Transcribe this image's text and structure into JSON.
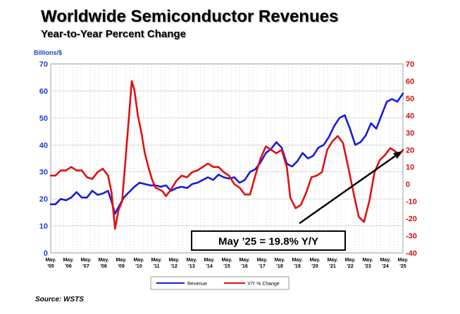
{
  "header": {
    "title": "Worldwide Semiconductor Revenues",
    "subtitle": "Year-to-Year Percent Change"
  },
  "footer": {
    "source": "Source: WSTS"
  },
  "colors": {
    "revenue": "#1a1adb",
    "yoy": "#e01010",
    "left_axis": "#1f3fbf",
    "right_axis": "#d01010"
  },
  "chart_data": {
    "type": "line",
    "left_axis": {
      "unit_label": "Billions/$",
      "ylim": [
        0,
        70
      ],
      "ticks": [
        0,
        10,
        20,
        30,
        40,
        50,
        60,
        70
      ]
    },
    "right_axis": {
      "ylim": [
        -40,
        70
      ],
      "ticks": [
        -40,
        -30,
        -20,
        -10,
        0,
        10,
        20,
        30,
        40,
        50,
        60,
        70
      ]
    },
    "x_ticks": [
      [
        "May.",
        "'05"
      ],
      [
        "May.",
        "'06"
      ],
      [
        "May.",
        "'07"
      ],
      [
        "May.",
        "'08"
      ],
      [
        "May.",
        "'09"
      ],
      [
        "May.",
        "'10"
      ],
      [
        "May.",
        "'11"
      ],
      [
        "May.",
        "'12"
      ],
      [
        "May.",
        "'13"
      ],
      [
        "May.",
        "'14"
      ],
      [
        "May.",
        "'15"
      ],
      [
        "May.",
        "'16"
      ],
      [
        "May.",
        "'17"
      ],
      [
        "May.",
        "'18"
      ],
      [
        "May.",
        "'19"
      ],
      [
        "May.",
        "'20"
      ],
      [
        "May.",
        "'21"
      ],
      [
        "May.",
        "'22"
      ],
      [
        "May.",
        "'23"
      ],
      [
        "May.",
        "'24"
      ],
      [
        "May.",
        "'25"
      ]
    ],
    "x_range": [
      2005.33,
      2025.42
    ],
    "grid": true,
    "legend": {
      "placement": "bottom-center"
    },
    "annotation": "May ’25 = 19.8% Y/Y",
    "series": [
      {
        "name": "Revenue",
        "axis": "left",
        "x": [
          2005.33,
          2005.6,
          2005.9,
          2006.2,
          2006.5,
          2006.8,
          2007.1,
          2007.4,
          2007.7,
          2008.0,
          2008.3,
          2008.6,
          2008.8,
          2009.0,
          2009.2,
          2009.5,
          2009.8,
          2010.1,
          2010.4,
          2010.7,
          2011.0,
          2011.3,
          2011.6,
          2011.9,
          2012.2,
          2012.5,
          2012.8,
          2013.1,
          2013.4,
          2013.7,
          2014.0,
          2014.3,
          2014.6,
          2014.9,
          2015.2,
          2015.5,
          2015.8,
          2016.1,
          2016.4,
          2016.7,
          2017.0,
          2017.3,
          2017.6,
          2017.9,
          2018.2,
          2018.5,
          2018.8,
          2019.1,
          2019.4,
          2019.7,
          2020.0,
          2020.3,
          2020.6,
          2020.9,
          2021.2,
          2021.5,
          2021.8,
          2022.1,
          2022.4,
          2022.7,
          2023.0,
          2023.3,
          2023.6,
          2023.9,
          2024.2,
          2024.5,
          2024.8,
          2025.1,
          2025.42
        ],
        "values": [
          18,
          18,
          20,
          19.5,
          20.5,
          22.5,
          20.5,
          20.5,
          23,
          21.5,
          22,
          23,
          19,
          14.5,
          17,
          20.5,
          22.5,
          24.5,
          26,
          25.5,
          25,
          25,
          24.5,
          25,
          23,
          24,
          24.5,
          24,
          25.5,
          26,
          27,
          28,
          27,
          29,
          28,
          27.5,
          28,
          26,
          27,
          30,
          31,
          33.5,
          37,
          38.5,
          41,
          39,
          33,
          32,
          34,
          37,
          35,
          36,
          39,
          40,
          43,
          47,
          50,
          51,
          46,
          40,
          41,
          43.5,
          48,
          46,
          51,
          56,
          57,
          56,
          59
        ]
      },
      {
        "name": "Y/Y % Change",
        "axis": "right",
        "x": [
          2005.33,
          2005.6,
          2005.9,
          2006.2,
          2006.5,
          2006.8,
          2007.1,
          2007.4,
          2007.7,
          2008.0,
          2008.3,
          2008.6,
          2008.8,
          2009.0,
          2009.2,
          2009.4,
          2009.6,
          2009.8,
          2009.95,
          2010.1,
          2010.3,
          2010.5,
          2010.7,
          2010.9,
          2011.1,
          2011.3,
          2011.5,
          2011.7,
          2011.9,
          2012.2,
          2012.5,
          2012.8,
          2013.1,
          2013.4,
          2013.7,
          2014.0,
          2014.3,
          2014.6,
          2014.9,
          2015.2,
          2015.5,
          2015.8,
          2016.1,
          2016.4,
          2016.7,
          2017.0,
          2017.3,
          2017.6,
          2017.9,
          2018.2,
          2018.5,
          2018.8,
          2019.0,
          2019.3,
          2019.6,
          2019.9,
          2020.2,
          2020.5,
          2020.8,
          2021.1,
          2021.4,
          2021.7,
          2022.0,
          2022.3,
          2022.6,
          2022.9,
          2023.2,
          2023.5,
          2023.8,
          2024.1,
          2024.4,
          2024.7,
          2025.0,
          2025.2,
          2025.42
        ],
        "values": [
          5,
          5,
          8,
          8,
          10,
          8,
          8,
          4,
          3,
          7,
          9,
          5,
          -5,
          -26,
          -15,
          -10,
          15,
          40,
          60,
          55,
          40,
          30,
          18,
          10,
          3,
          -2,
          -3,
          -4,
          -7,
          -3,
          2,
          5,
          4,
          7,
          8,
          10,
          12,
          10,
          10,
          7,
          5,
          0,
          -2,
          -6,
          -6,
          5,
          15,
          22,
          20,
          18,
          20,
          10,
          -8,
          -14,
          -12,
          -5,
          4,
          5,
          7,
          20,
          25,
          28,
          24,
          10,
          -5,
          -19,
          -22,
          -10,
          7,
          14,
          17,
          21,
          19,
          17,
          20
        ]
      }
    ]
  }
}
